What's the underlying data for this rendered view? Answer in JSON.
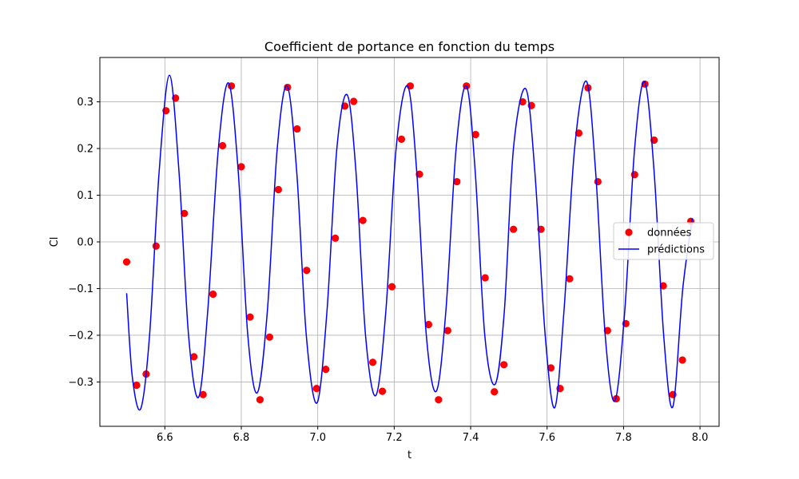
{
  "chart_data": {
    "type": "scatter+line",
    "title": "Coefficient de portance en fonction du temps",
    "xlabel": "t",
    "ylabel": "Cl",
    "xlim": [
      6.43,
      8.05
    ],
    "ylim": [
      -0.395,
      0.395
    ],
    "xticks": [
      6.6,
      6.8,
      7.0,
      7.2,
      7.4,
      7.6,
      7.8,
      8.0
    ],
    "xtick_labels": [
      "6.6",
      "6.8",
      "7.0",
      "7.2",
      "7.4",
      "7.6",
      "7.8",
      "8.0"
    ],
    "yticks": [
      -0.3,
      -0.2,
      -0.1,
      0.0,
      0.1,
      0.2,
      0.3
    ],
    "ytick_labels": [
      "−0.3",
      "−0.2",
      "−0.1",
      "0.0",
      "0.1",
      "0.2",
      "0.3"
    ],
    "grid": true,
    "legend_position": "center-right",
    "series": [
      {
        "name": "données",
        "kind": "scatter",
        "color": "#ff0000",
        "points": [
          [
            6.5,
            -0.043
          ],
          [
            6.526,
            -0.307
          ],
          [
            6.551,
            -0.283
          ],
          [
            6.577,
            -0.009
          ],
          [
            6.603,
            0.281
          ],
          [
            6.628,
            0.308
          ],
          [
            6.651,
            0.061
          ],
          [
            6.676,
            -0.246
          ],
          [
            6.7,
            -0.327
          ],
          [
            6.726,
            -0.112
          ],
          [
            6.751,
            0.206
          ],
          [
            6.774,
            0.334
          ],
          [
            6.8,
            0.161
          ],
          [
            6.823,
            -0.161
          ],
          [
            6.849,
            -0.338
          ],
          [
            6.874,
            -0.204
          ],
          [
            6.897,
            0.112
          ],
          [
            6.921,
            0.331
          ],
          [
            6.946,
            0.242
          ],
          [
            6.971,
            -0.061
          ],
          [
            6.997,
            -0.314
          ],
          [
            7.021,
            -0.273
          ],
          [
            7.046,
            0.008
          ],
          [
            7.071,
            0.291
          ],
          [
            7.094,
            0.301
          ],
          [
            7.118,
            0.046
          ],
          [
            7.144,
            -0.258
          ],
          [
            7.169,
            -0.32
          ],
          [
            7.194,
            -0.096
          ],
          [
            7.219,
            0.22
          ],
          [
            7.242,
            0.334
          ],
          [
            7.266,
            0.145
          ],
          [
            7.29,
            -0.177
          ],
          [
            7.316,
            -0.338
          ],
          [
            7.34,
            -0.19
          ],
          [
            7.364,
            0.129
          ],
          [
            7.389,
            0.334
          ],
          [
            7.413,
            0.23
          ],
          [
            7.438,
            -0.077
          ],
          [
            7.462,
            -0.321
          ],
          [
            7.487,
            -0.263
          ],
          [
            7.512,
            0.027
          ],
          [
            7.536,
            0.3
          ],
          [
            7.559,
            0.292
          ],
          [
            7.584,
            0.027
          ],
          [
            7.61,
            -0.27
          ],
          [
            7.634,
            -0.314
          ],
          [
            7.659,
            -0.079
          ],
          [
            7.683,
            0.233
          ],
          [
            7.707,
            0.33
          ],
          [
            7.733,
            0.129
          ],
          [
            7.758,
            -0.19
          ],
          [
            7.781,
            -0.336
          ],
          [
            7.806,
            -0.175
          ],
          [
            7.829,
            0.144
          ],
          [
            7.856,
            0.338
          ],
          [
            7.88,
            0.218
          ],
          [
            7.904,
            -0.094
          ],
          [
            7.929,
            -0.327
          ],
          [
            7.954,
            -0.253
          ],
          [
            7.976,
            0.044
          ]
        ]
      },
      {
        "name": "prédictions",
        "kind": "line",
        "color": "#0000ff",
        "points": [
          [
            6.5,
            -0.11
          ],
          [
            6.515,
            -0.29
          ],
          [
            6.537,
            -0.357
          ],
          [
            6.56,
            -0.2
          ],
          [
            6.585,
            0.15
          ],
          [
            6.612,
            0.357
          ],
          [
            6.637,
            0.15
          ],
          [
            6.662,
            -0.2
          ],
          [
            6.688,
            -0.333
          ],
          [
            6.712,
            -0.15
          ],
          [
            6.74,
            0.2
          ],
          [
            6.767,
            0.34
          ],
          [
            6.792,
            0.15
          ],
          [
            6.817,
            -0.2
          ],
          [
            6.842,
            -0.323
          ],
          [
            6.868,
            -0.15
          ],
          [
            6.894,
            0.2
          ],
          [
            6.92,
            0.334
          ],
          [
            6.945,
            0.15
          ],
          [
            6.97,
            -0.2
          ],
          [
            6.998,
            -0.345
          ],
          [
            7.024,
            -0.15
          ],
          [
            7.05,
            0.2
          ],
          [
            7.077,
            0.315
          ],
          [
            7.1,
            0.15
          ],
          [
            7.125,
            -0.2
          ],
          [
            7.152,
            -0.329
          ],
          [
            7.178,
            -0.15
          ],
          [
            7.205,
            0.2
          ],
          [
            7.235,
            0.334
          ],
          [
            7.259,
            0.15
          ],
          [
            7.284,
            -0.2
          ],
          [
            7.31,
            -0.32
          ],
          [
            7.335,
            -0.15
          ],
          [
            7.362,
            0.2
          ],
          [
            7.389,
            0.334
          ],
          [
            7.412,
            0.15
          ],
          [
            7.437,
            -0.2
          ],
          [
            7.464,
            -0.305
          ],
          [
            7.488,
            -0.15
          ],
          [
            7.512,
            0.2
          ],
          [
            7.544,
            0.328
          ],
          [
            7.568,
            0.15
          ],
          [
            7.595,
            -0.2
          ],
          [
            7.62,
            -0.355
          ],
          [
            7.644,
            -0.15
          ],
          [
            7.672,
            0.2
          ],
          [
            7.703,
            0.344
          ],
          [
            7.727,
            0.15
          ],
          [
            7.752,
            -0.2
          ],
          [
            7.777,
            -0.341
          ],
          [
            7.803,
            -0.15
          ],
          [
            7.829,
            0.2
          ],
          [
            7.855,
            0.343
          ],
          [
            7.88,
            0.15
          ],
          [
            7.905,
            -0.2
          ],
          [
            7.929,
            -0.353
          ],
          [
            7.955,
            -0.1
          ],
          [
            7.98,
            0.05
          ]
        ]
      }
    ]
  }
}
